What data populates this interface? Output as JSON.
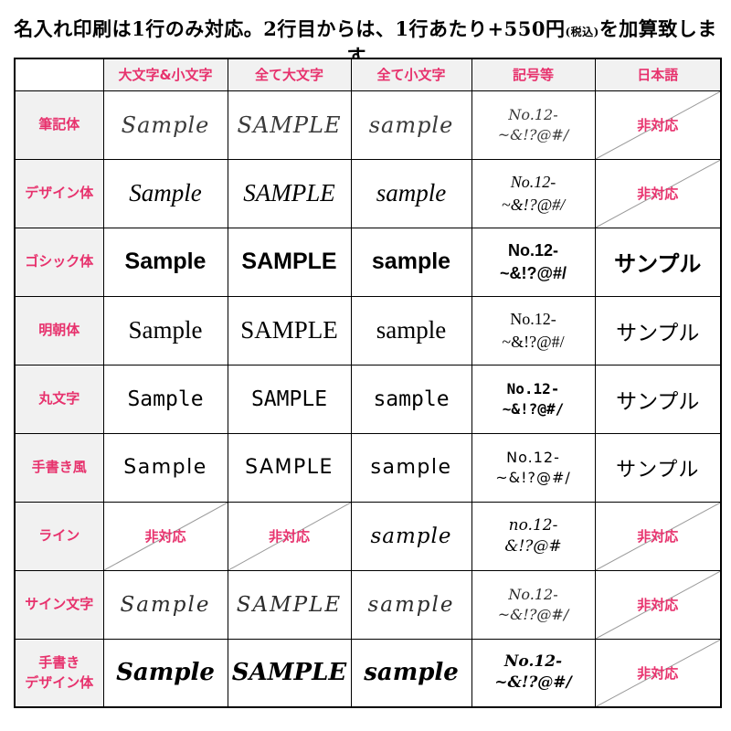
{
  "title": {
    "main": "名入れ印刷は1行のみ対応。2行目からは、1行あたり+550円",
    "small": "(税込)",
    "suffix": "を加算致します。"
  },
  "colors": {
    "accent": "#e7326d",
    "header_bg": "#f1f1f1",
    "border": "#000000",
    "diagonal_line": "#9a9a9a"
  },
  "table": {
    "not_supported_label": "非対応",
    "columns": [
      "",
      "大文字&小文字",
      "全て大文字",
      "全て小文字",
      "記号等",
      "日本語"
    ],
    "rows": [
      {
        "label": "筆記体",
        "style_id": "script",
        "upper_lower": "Sample",
        "upper": "SAMPLE",
        "lower": "sample",
        "symbols_line1": "No.12-",
        "symbols_line2": "~&!?@#/",
        "japanese": null
      },
      {
        "label": "デザイン体",
        "style_id": "design",
        "upper_lower": "Sample",
        "upper": "SAMPLE",
        "lower": "sample",
        "symbols_line1": "No.12-",
        "symbols_line2": "~&!?@#/",
        "japanese": null
      },
      {
        "label": "ゴシック体",
        "style_id": "gothic",
        "upper_lower": "Sample",
        "upper": "SAMPLE",
        "lower": "sample",
        "symbols_line1": "No.12-",
        "symbols_line2": "~&!?@#/",
        "japanese": "サンプル"
      },
      {
        "label": "明朝体",
        "style_id": "mincho",
        "upper_lower": "Sample",
        "upper": "SAMPLE",
        "lower": "sample",
        "symbols_line1": "No.12-",
        "symbols_line2": "~&!?@#/",
        "japanese": "サンプル"
      },
      {
        "label": "丸文字",
        "style_id": "maru",
        "upper_lower": "Sample",
        "upper": "SAMPLE",
        "lower": "sample",
        "symbols_line1": "No.12-",
        "symbols_line2": "~&!?@#/",
        "japanese": "サンプル"
      },
      {
        "label": "手書き風",
        "style_id": "tegaki",
        "upper_lower": "Sample",
        "upper": "SAMPLE",
        "lower": "sample",
        "symbols_line1": "No.12-",
        "symbols_line2": "~&!?@#/",
        "japanese": "サンプル"
      },
      {
        "label": "ライン",
        "style_id": "line",
        "upper_lower": null,
        "upper": null,
        "lower": "sample",
        "symbols_line1": "no.12-",
        "symbols_line2": "&!?@#",
        "japanese": null
      },
      {
        "label": "サイン文字",
        "style_id": "sign",
        "upper_lower": "Sample",
        "upper": "SAMPLE",
        "lower": "sample",
        "symbols_line1": "No.12-",
        "symbols_line2": "~&!?@#/",
        "japanese": null
      },
      {
        "label": "手書き\nデザイン体",
        "style_id": "tegaki-design",
        "upper_lower": "Sample",
        "upper": "SAMPLE",
        "lower": "sample",
        "symbols_line1": "No.12-",
        "symbols_line2": "~&!?@#/",
        "japanese": null
      }
    ]
  }
}
